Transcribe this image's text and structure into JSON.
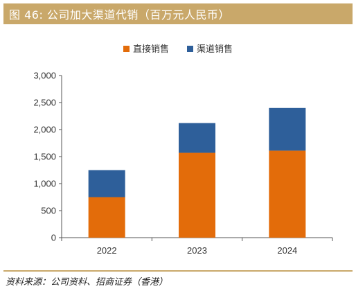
{
  "header": {
    "title": "图 46: 公司加大渠道代销（百万元人民币）"
  },
  "footer": {
    "source": "资料来源：公司资料、招商证券（香港）"
  },
  "colors": {
    "title_bg": "#c9a86a",
    "direct": "#e36c0a",
    "channel": "#2e5f9a"
  },
  "chart_data": {
    "type": "bar",
    "stacked": true,
    "categories": [
      "2022",
      "2023",
      "2024"
    ],
    "series": [
      {
        "name": "直接销售",
        "values": [
          750,
          1570,
          1610
        ],
        "color": "#e36c0a"
      },
      {
        "name": "渠道销售",
        "values": [
          500,
          550,
          790
        ],
        "color": "#2e5f9a"
      }
    ],
    "ylim": [
      0,
      3000
    ],
    "yticks": [
      0,
      500,
      1000,
      1500,
      2000,
      2500,
      3000
    ],
    "ytick_labels": [
      "0",
      "500",
      "1,000",
      "1,500",
      "2,000",
      "2,500",
      "3,000"
    ],
    "legend_position": "top-center",
    "grid": false
  }
}
